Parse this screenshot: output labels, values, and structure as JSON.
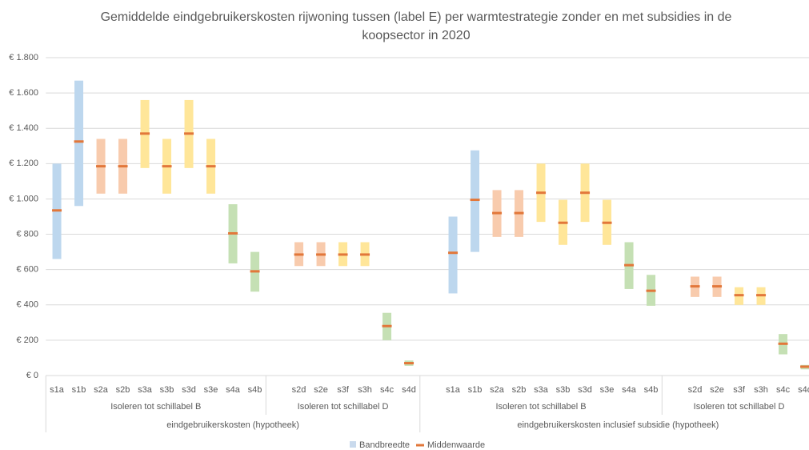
{
  "chart_data": {
    "type": "range",
    "title": "Gemiddelde eindgebruikerskosten rijwoning tussen (label E) per warmtestrategie zonder en met subsidies in de koopsector in 2020",
    "categories": [
      "s1a",
      "s1b",
      "s2a",
      "s2b",
      "s3a",
      "s3b",
      "s3d",
      "s3e",
      "s4a",
      "s4b",
      null,
      "s2d",
      "s2e",
      "s3f",
      "s3h",
      "s4c",
      "s4d",
      null,
      "s1a",
      "s1b",
      "s2a",
      "s2b",
      "s3a",
      "s3b",
      "s3d",
      "s3e",
      "s4a",
      "s4b",
      null,
      "s2d",
      "s2e",
      "s3f",
      "s3h",
      "s4c",
      "s4d"
    ],
    "subgroup_labels": [
      "Isoleren tot schillabel B",
      "Isoleren tot schillabel D",
      "Isoleren tot schillabel B",
      "Isoleren tot schillabel D"
    ],
    "group_labels": [
      "eindgebruikerskosten (hypotheek)",
      "eindgebruikerskosten inclusief subsidie (hypotheek)"
    ],
    "series": [
      {
        "name": "Bandbreedte",
        "color": "#c9daed",
        "low": [
          660,
          960,
          1030,
          1030,
          1175,
          1030,
          1175,
          1030,
          635,
          475,
          null,
          620,
          620,
          620,
          620,
          200,
          55,
          null,
          465,
          700,
          785,
          785,
          870,
          740,
          870,
          740,
          490,
          395,
          null,
          445,
          445,
          400,
          400,
          120,
          35
        ],
        "high": [
          1200,
          1670,
          1340,
          1340,
          1560,
          1340,
          1560,
          1340,
          970,
          700,
          null,
          755,
          755,
          755,
          755,
          355,
          85,
          null,
          900,
          1275,
          1050,
          1050,
          1200,
          995,
          1200,
          995,
          755,
          570,
          null,
          560,
          560,
          500,
          500,
          235,
          60
        ],
        "colors": [
          "#bdd7ee",
          "#bdd7ee",
          "#f8cbad",
          "#f8cbad",
          "#ffe699",
          "#ffe699",
          "#ffe699",
          "#ffe699",
          "#c5e0b4",
          "#c5e0b4",
          null,
          "#f8cbad",
          "#f8cbad",
          "#ffe699",
          "#ffe699",
          "#c5e0b4",
          "#c5e0b4",
          null,
          "#bdd7ee",
          "#bdd7ee",
          "#f8cbad",
          "#f8cbad",
          "#ffe699",
          "#ffe699",
          "#ffe699",
          "#ffe699",
          "#c5e0b4",
          "#c5e0b4",
          null,
          "#f8cbad",
          "#f8cbad",
          "#ffe699",
          "#ffe699",
          "#c5e0b4",
          "#c5e0b4"
        ]
      },
      {
        "name": "Middenwaarde",
        "color": "#e2773a",
        "values": [
          935,
          1325,
          1185,
          1185,
          1370,
          1185,
          1370,
          1185,
          805,
          590,
          null,
          685,
          685,
          685,
          685,
          280,
          70,
          null,
          695,
          995,
          920,
          920,
          1035,
          865,
          1035,
          865,
          625,
          480,
          null,
          505,
          505,
          455,
          455,
          180,
          50
        ]
      }
    ],
    "ylim": [
      0,
      1800
    ],
    "yticks": [
      {
        "value": 0,
        "label": "€ 0"
      },
      {
        "value": 200,
        "label": "€ 200"
      },
      {
        "value": 400,
        "label": "€ 400"
      },
      {
        "value": 600,
        "label": "€ 600"
      },
      {
        "value": 800,
        "label": "€ 800"
      },
      {
        "value": 1000,
        "label": "€ 1.000"
      },
      {
        "value": 1200,
        "label": "€ 1.200"
      },
      {
        "value": 1400,
        "label": "€ 1.400"
      },
      {
        "value": 1600,
        "label": "€ 1.600"
      },
      {
        "value": 1800,
        "label": "€ 1.800"
      }
    ],
    "grid": true
  }
}
